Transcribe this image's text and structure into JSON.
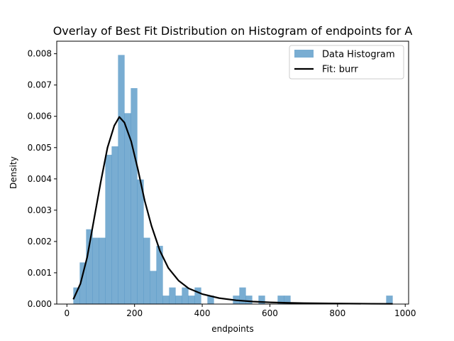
{
  "chart_data": {
    "type": "bar",
    "title": "Overlay of Best Fit Distribution on Histogram of endpoints for A",
    "xlabel": "endpoints",
    "ylabel": "Density",
    "xlim": [
      -30,
      1010
    ],
    "ylim": [
      0,
      0.0084
    ],
    "xticks": [
      0,
      200,
      400,
      600,
      800,
      1000
    ],
    "yticks": [
      0.0,
      0.001,
      0.002,
      0.003,
      0.004,
      0.005,
      0.006,
      0.007,
      0.008
    ],
    "ytick_labels": [
      "0.000",
      "0.001",
      "0.002",
      "0.003",
      "0.004",
      "0.005",
      "0.006",
      "0.007",
      "0.008"
    ],
    "grid": false,
    "legend": {
      "position": "top-right",
      "entries": [
        "Data Histogram",
        "Fit: burr"
      ]
    },
    "colors": {
      "histogram": "#1f77b4",
      "fit": "#000000"
    },
    "histogram": {
      "name": "Data Histogram",
      "bin_start": 19,
      "bin_width": 18.87,
      "values": [
        0.00053,
        0.00133,
        0.00239,
        0.00212,
        0.00212,
        0.00477,
        0.00504,
        0.00796,
        0.0061,
        0.0069,
        0.00398,
        0.00212,
        0.00106,
        0.00186,
        0.00027,
        0.00053,
        0.00027,
        0.00053,
        0.00027,
        0.00053,
        0.0,
        0.00027,
        0.0,
        0.0,
        0.0,
        0.00027,
        0.00053,
        0.00027,
        0.0,
        0.00027,
        0.0,
        0.0,
        0.00027,
        0.00027,
        0.0,
        0.0,
        0.0,
        0.0,
        0.0,
        0.0,
        0.0,
        0.0,
        0.0,
        0.0,
        0.0,
        0.0,
        0.0,
        0.0,
        0.0,
        0.00027
      ]
    },
    "fit": {
      "name": "Fit: burr",
      "x": [
        19,
        40,
        60,
        80,
        100,
        120,
        140,
        155,
        170,
        190,
        210,
        230,
        250,
        275,
        300,
        330,
        360,
        400,
        450,
        500,
        550,
        600,
        650,
        700,
        800,
        900,
        963
      ],
      "y": [
        0.00015,
        0.00065,
        0.0015,
        0.0027,
        0.0039,
        0.005,
        0.0057,
        0.00598,
        0.0058,
        0.0052,
        0.0043,
        0.0033,
        0.0025,
        0.0017,
        0.00115,
        0.00075,
        0.0005,
        0.00032,
        0.00019,
        0.00012,
        8e-05,
        5.5e-05,
        4e-05,
        3e-05,
        1.7e-05,
        1e-05,
        7e-06
      ]
    }
  }
}
